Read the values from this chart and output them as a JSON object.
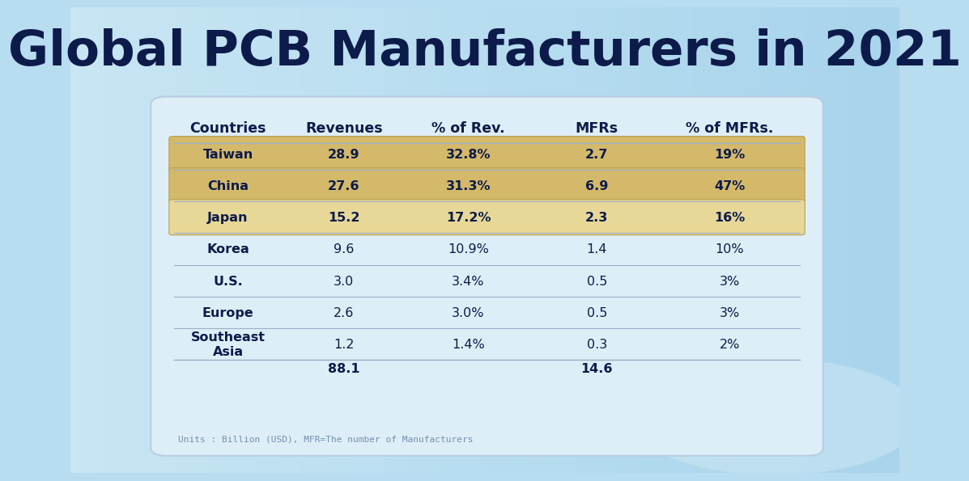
{
  "title": "Global PCB Manufacturers in 2021",
  "title_color": "#0d1b4b",
  "title_fontsize": 44,
  "bg_color": "#b8dcf0",
  "table_bg": "#deeef8",
  "highlight_color_top": "#d4b96a",
  "highlight_color_bottom": "#e8d898",
  "header_row": [
    "Countries",
    "Revenues",
    "% of Rev.",
    "MFRs",
    "% of MFRs."
  ],
  "rows": [
    [
      "Taiwan",
      "28.9",
      "32.8%",
      "2.7",
      "19%"
    ],
    [
      "China",
      "27.6",
      "31.3%",
      "6.9",
      "47%"
    ],
    [
      "Japan",
      "15.2",
      "17.2%",
      "2.3",
      "16%"
    ],
    [
      "Korea",
      "9.6",
      "10.9%",
      "1.4",
      "10%"
    ],
    [
      "U.S.",
      "3.0",
      "3.4%",
      "0.5",
      "3%"
    ],
    [
      "Europe",
      "2.6",
      "3.0%",
      "0.5",
      "3%"
    ],
    [
      "Southeast\nAsia",
      "1.2",
      "1.4%",
      "0.3",
      "2%"
    ]
  ],
  "totals_row": [
    "",
    "88.1",
    "",
    "14.6",
    ""
  ],
  "footnote": "Units : Billion (USD), MFR=The number of Manufacturers",
  "highlighted_rows": [
    0,
    1,
    2
  ],
  "highlight_colors": [
    "#d4b96a",
    "#d4b96a",
    "#e8d898"
  ],
  "text_color": "#0d1b4b",
  "line_color": "#9ab0c8",
  "footnote_color": "#7090b0"
}
